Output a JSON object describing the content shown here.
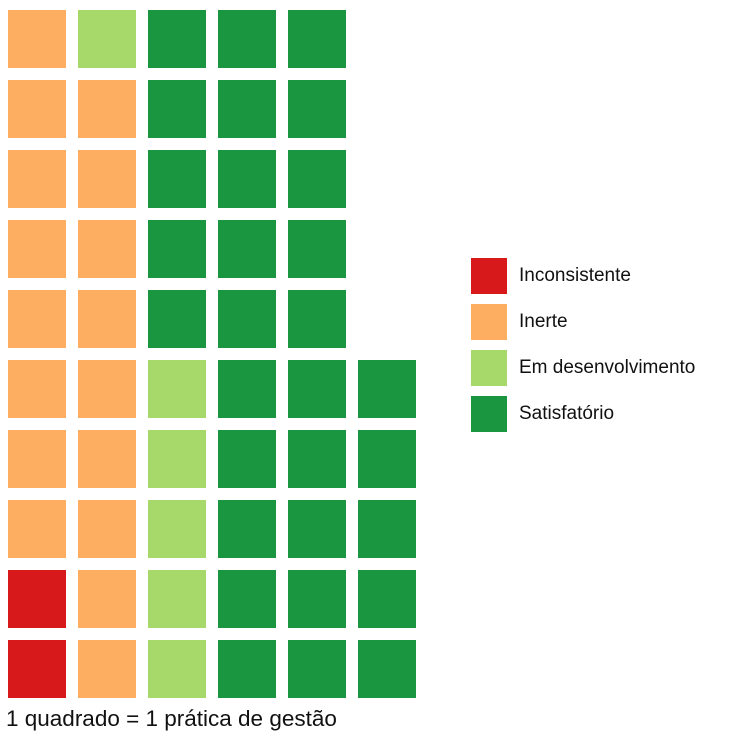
{
  "chart_data": {
    "type": "waffle",
    "title": "",
    "caption": "1 quadrado = 1 prática de gestão",
    "legend_position": "right",
    "categories": [
      {
        "name": "Inconsistente",
        "color": "#d7191c",
        "count": 2
      },
      {
        "name": "Inerte",
        "color": "#fdae61",
        "count": 17
      },
      {
        "name": "Em desenvolvimento",
        "color": "#a6d96a",
        "count": 6
      },
      {
        "name": "Satisfatório",
        "color": "#1a9641",
        "count": 30
      }
    ],
    "columns": [
      [
        "Inconsistente",
        "Inconsistente",
        "Inerte",
        "Inerte",
        "Inerte",
        "Inerte",
        "Inerte",
        "Inerte",
        "Inerte",
        "Inerte"
      ],
      [
        "Inerte",
        "Inerte",
        "Inerte",
        "Inerte",
        "Inerte",
        "Inerte",
        "Inerte",
        "Inerte",
        "Inerte",
        "Em desenvolvimento"
      ],
      [
        "Em desenvolvimento",
        "Em desenvolvimento",
        "Em desenvolvimento",
        "Em desenvolvimento",
        "Em desenvolvimento",
        "Satisfatório",
        "Satisfatório",
        "Satisfatório",
        "Satisfatório",
        "Satisfatório"
      ],
      [
        "Satisfatório",
        "Satisfatório",
        "Satisfatório",
        "Satisfatório",
        "Satisfatório",
        "Satisfatório",
        "Satisfatório",
        "Satisfatório",
        "Satisfatório",
        "Satisfatório"
      ],
      [
        "Satisfatório",
        "Satisfatório",
        "Satisfatório",
        "Satisfatório",
        "Satisfatório",
        "Satisfatório",
        "Satisfatório",
        "Satisfatório",
        "Satisfatório",
        "Satisfatório"
      ],
      [
        "Satisfatório",
        "Satisfatório",
        "Satisfatório",
        "Satisfatório",
        "Satisfatório"
      ]
    ]
  }
}
